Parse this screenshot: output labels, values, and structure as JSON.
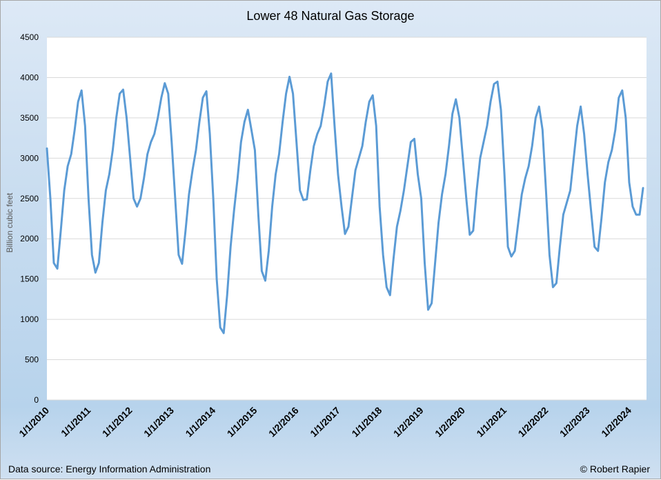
{
  "chart_data": {
    "type": "line",
    "title": "Lower 48 Natural Gas Storage",
    "xlabel": "",
    "ylabel": "Billion cubic feet",
    "ylim": [
      0,
      4500
    ],
    "yticks": [
      0,
      500,
      1000,
      1500,
      2000,
      2500,
      3000,
      3500,
      4000,
      4500
    ],
    "xlim": [
      "2010-01",
      "2024-06"
    ],
    "xtick_labels": [
      {
        "label": "1/1/2010",
        "date": "2010-01"
      },
      {
        "label": "1/1/2011",
        "date": "2011-01"
      },
      {
        "label": "1/1/2012",
        "date": "2012-01"
      },
      {
        "label": "1/1/2013",
        "date": "2013-01"
      },
      {
        "label": "1/1/2014",
        "date": "2014-01"
      },
      {
        "label": "1/1/2015",
        "date": "2015-01"
      },
      {
        "label": "1/2/2016",
        "date": "2016-01"
      },
      {
        "label": "1/1/2017",
        "date": "2017-01"
      },
      {
        "label": "1/1/2018",
        "date": "2018-01"
      },
      {
        "label": "1/2/2019",
        "date": "2019-01"
      },
      {
        "label": "1/2/2020",
        "date": "2020-01"
      },
      {
        "label": "1/1/2021",
        "date": "2021-01"
      },
      {
        "label": "1/2/2022",
        "date": "2022-01"
      },
      {
        "label": "1/2/2023",
        "date": "2023-01"
      },
      {
        "label": "1/2/2024",
        "date": "2024-01"
      }
    ],
    "grid": true,
    "legend": "none",
    "line_color": "#5b9bd5",
    "series": [
      {
        "x": [
          "2010-01",
          "2010-02",
          "2010-03",
          "2010-04",
          "2010-05",
          "2010-06",
          "2010-07",
          "2010-08",
          "2010-09",
          "2010-10",
          "2010-11",
          "2010-12",
          "2011-01",
          "2011-02",
          "2011-03",
          "2011-04",
          "2011-05",
          "2011-06",
          "2011-07",
          "2011-08",
          "2011-09",
          "2011-10",
          "2011-11",
          "2011-12",
          "2012-01",
          "2012-02",
          "2012-03",
          "2012-04",
          "2012-05",
          "2012-06",
          "2012-07",
          "2012-08",
          "2012-09",
          "2012-10",
          "2012-11",
          "2012-12",
          "2013-01",
          "2013-02",
          "2013-03",
          "2013-04",
          "2013-05",
          "2013-06",
          "2013-07",
          "2013-08",
          "2013-09",
          "2013-10",
          "2013-11",
          "2013-12",
          "2014-01",
          "2014-02",
          "2014-03",
          "2014-04",
          "2014-05",
          "2014-06",
          "2014-07",
          "2014-08",
          "2014-09",
          "2014-10",
          "2014-11",
          "2014-12",
          "2015-01",
          "2015-02",
          "2015-03",
          "2015-04",
          "2015-05",
          "2015-06",
          "2015-07",
          "2015-08",
          "2015-09",
          "2015-10",
          "2015-11",
          "2015-12",
          "2016-01",
          "2016-02",
          "2016-03",
          "2016-04",
          "2016-05",
          "2016-06",
          "2016-07",
          "2016-08",
          "2016-09",
          "2016-10",
          "2016-11",
          "2016-12",
          "2017-01",
          "2017-02",
          "2017-03",
          "2017-04",
          "2017-05",
          "2017-06",
          "2017-07",
          "2017-08",
          "2017-09",
          "2017-10",
          "2017-11",
          "2017-12",
          "2018-01",
          "2018-02",
          "2018-03",
          "2018-04",
          "2018-05",
          "2018-06",
          "2018-07",
          "2018-08",
          "2018-09",
          "2018-10",
          "2018-11",
          "2018-12",
          "2019-01",
          "2019-02",
          "2019-03",
          "2019-04",
          "2019-05",
          "2019-06",
          "2019-07",
          "2019-08",
          "2019-09",
          "2019-10",
          "2019-11",
          "2019-12",
          "2020-01",
          "2020-02",
          "2020-03",
          "2020-04",
          "2020-05",
          "2020-06",
          "2020-07",
          "2020-08",
          "2020-09",
          "2020-10",
          "2020-11",
          "2020-12",
          "2021-01",
          "2021-02",
          "2021-03",
          "2021-04",
          "2021-05",
          "2021-06",
          "2021-07",
          "2021-08",
          "2021-09",
          "2021-10",
          "2021-11",
          "2021-12",
          "2022-01",
          "2022-02",
          "2022-03",
          "2022-04",
          "2022-05",
          "2022-06",
          "2022-07",
          "2022-08",
          "2022-09",
          "2022-10",
          "2022-11",
          "2022-12",
          "2023-01",
          "2023-02",
          "2023-03",
          "2023-04",
          "2023-05",
          "2023-06",
          "2023-07",
          "2023-08",
          "2023-09",
          "2023-10",
          "2023-11",
          "2023-12",
          "2024-01",
          "2024-02",
          "2024-03",
          "2024-04",
          "2024-05"
        ],
        "values": [
          3120,
          2500,
          1700,
          1630,
          2100,
          2600,
          2900,
          3050,
          3350,
          3700,
          3840,
          3400,
          2500,
          1800,
          1580,
          1700,
          2200,
          2600,
          2800,
          3100,
          3500,
          3800,
          3850,
          3500,
          3000,
          2500,
          2400,
          2500,
          2750,
          3050,
          3200,
          3300,
          3500,
          3750,
          3930,
          3800,
          3200,
          2500,
          1800,
          1690,
          2100,
          2550,
          2850,
          3100,
          3450,
          3750,
          3830,
          3300,
          2500,
          1500,
          900,
          830,
          1300,
          1900,
          2350,
          2750,
          3200,
          3450,
          3600,
          3350,
          3100,
          2300,
          1600,
          1480,
          1850,
          2400,
          2800,
          3050,
          3450,
          3800,
          4010,
          3800,
          3200,
          2600,
          2480,
          2490,
          2850,
          3150,
          3300,
          3400,
          3650,
          3950,
          4050,
          3400,
          2800,
          2400,
          2060,
          2150,
          2500,
          2850,
          3000,
          3150,
          3450,
          3700,
          3780,
          3400,
          2400,
          1800,
          1400,
          1300,
          1750,
          2150,
          2350,
          2600,
          2900,
          3200,
          3240,
          2800,
          2500,
          1700,
          1120,
          1200,
          1700,
          2200,
          2550,
          2800,
          3150,
          3550,
          3730,
          3500,
          3000,
          2500,
          2050,
          2100,
          2600,
          3000,
          3200,
          3400,
          3700,
          3920,
          3950,
          3600,
          2800,
          1900,
          1780,
          1850,
          2200,
          2550,
          2750,
          2900,
          3150,
          3500,
          3640,
          3350,
          2600,
          1800,
          1400,
          1450,
          1900,
          2300,
          2450,
          2600,
          3000,
          3400,
          3640,
          3300,
          2800,
          2350,
          1900,
          1850,
          2250,
          2700,
          2950,
          3100,
          3350,
          3750,
          3840,
          3500,
          2700,
          2400,
          2300,
          2300,
          2630
        ]
      }
    ]
  },
  "footer": {
    "source": "Data source: Energy Information Administration",
    "credit": "© Robert Rapier"
  }
}
